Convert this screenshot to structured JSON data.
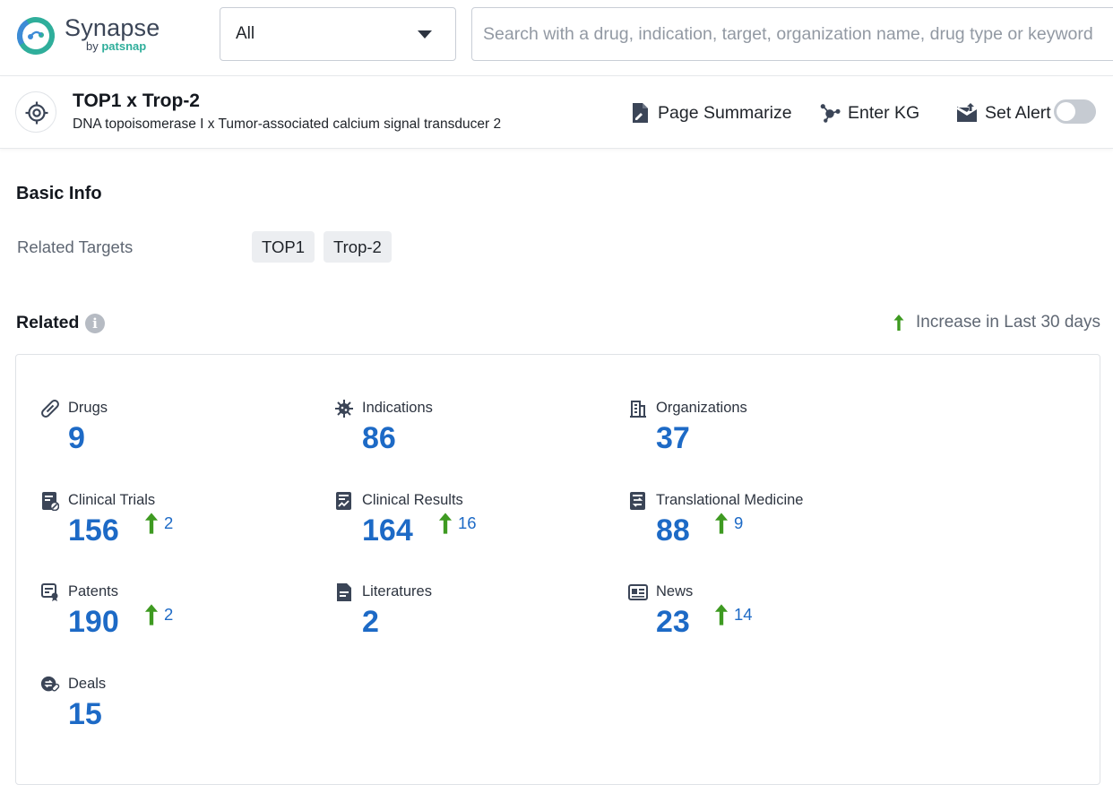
{
  "brand": {
    "name": "Synapse",
    "by_prefix": "by ",
    "by_brand": "patsnap"
  },
  "search_bar": {
    "scope_value": "All",
    "placeholder": "Search with a drug, indication, target, organization name, drug type or keyword"
  },
  "header": {
    "title": "TOP1 x Trop-2",
    "subtitle": "DNA topoisomerase I x Tumor-associated calcium signal transducer 2",
    "actions": {
      "summarize": "Page Summarize",
      "enter_kg": "Enter KG",
      "set_alert": "Set Alert"
    },
    "alert_enabled": false
  },
  "basic_info": {
    "heading": "Basic Info",
    "related_targets_label": "Related Targets",
    "related_targets": [
      "TOP1",
      "Trop-2"
    ]
  },
  "related": {
    "heading": "Related",
    "info_glyph": "i",
    "legend": "Increase in Last 30 days",
    "stats": [
      {
        "label": "Drugs",
        "value": "9",
        "increase": "",
        "icon": "pill-icon"
      },
      {
        "label": "Indications",
        "value": "86",
        "increase": "",
        "icon": "virus-icon"
      },
      {
        "label": "Organizations",
        "value": "37",
        "increase": "",
        "icon": "building-icon"
      },
      {
        "label": "Clinical Trials",
        "value": "156",
        "increase": "2",
        "icon": "clinical-trial-icon"
      },
      {
        "label": "Clinical Results",
        "value": "164",
        "increase": "16",
        "icon": "clinical-results-icon"
      },
      {
        "label": "Translational Medicine",
        "value": "88",
        "increase": "9",
        "icon": "translational-medicine-icon"
      },
      {
        "label": "Patents",
        "value": "190",
        "increase": "2",
        "icon": "patent-icon"
      },
      {
        "label": "Literatures",
        "value": "2",
        "increase": "",
        "icon": "document-icon"
      },
      {
        "label": "News",
        "value": "23",
        "increase": "14",
        "icon": "news-icon"
      },
      {
        "label": "Deals",
        "value": "15",
        "increase": "",
        "icon": "deal-icon"
      }
    ]
  },
  "colors": {
    "accent_blue": "#1d6ac6",
    "increase_green": "#3e9a21",
    "icon_slate": "#3b4557",
    "logo_teal": "#2fae9b"
  }
}
